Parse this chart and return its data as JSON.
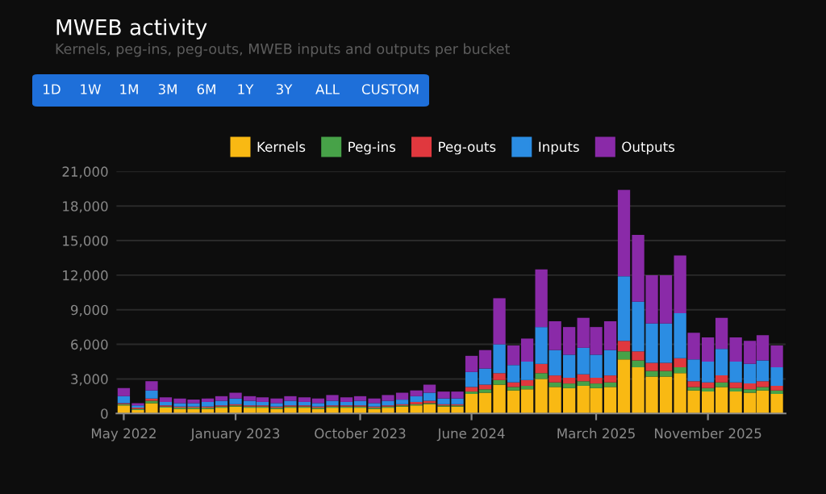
{
  "chart_data": {
    "type": "bar",
    "stacked": true,
    "title": "MWEB activity",
    "subtitle": "Kernels, peg-ins, peg-outs, MWEB inputs and outputs per bucket",
    "annotations": [
      "1D",
      "1W",
      "1M",
      "3M",
      "6M",
      "1Y",
      "3Y",
      "ALL",
      "CUSTOM"
    ],
    "x": [
      "2022-05",
      "2022-06",
      "2022-07",
      "2022-08",
      "2022-09",
      "2022-10",
      "2022-11",
      "2022-12",
      "2023-01",
      "2023-02",
      "2023-03",
      "2023-04",
      "2023-05",
      "2023-06",
      "2023-07",
      "2023-08",
      "2023-09",
      "2023-10",
      "2023-11",
      "2023-12",
      "2024-01",
      "2024-02",
      "2024-03",
      "2024-04",
      "2024-05",
      "2024-06",
      "2024-07",
      "2024-08",
      "2024-09",
      "2024-10",
      "2024-11",
      "2024-12",
      "2025-01",
      "2025-02",
      "2025-03",
      "2025-04",
      "2025-05",
      "2025-06",
      "2025-07",
      "2025-08",
      "2025-09",
      "2025-10",
      "2025-11",
      "2025-12",
      "2026-01",
      "2026-02",
      "2026-03",
      "2026-04"
    ],
    "series": [
      {
        "name": "Kernels",
        "color": "#f9b913",
        "values": [
          700,
          300,
          900,
          500,
          400,
          400,
          400,
          500,
          600,
          500,
          500,
          400,
          500,
          500,
          400,
          500,
          500,
          500,
          400,
          500,
          600,
          700,
          800,
          600,
          600,
          1700,
          1800,
          2500,
          2000,
          2100,
          3000,
          2300,
          2200,
          2400,
          2200,
          2300,
          4700,
          4000,
          3200,
          3200,
          3500,
          2000,
          1900,
          2300,
          1900,
          1800,
          2000,
          1700
        ]
      },
      {
        "name": "Peg-ins",
        "color": "#47a248",
        "values": [
          100,
          100,
          200,
          100,
          100,
          100,
          100,
          100,
          100,
          100,
          100,
          100,
          100,
          100,
          100,
          100,
          100,
          100,
          100,
          100,
          100,
          100,
          100,
          100,
          100,
          200,
          300,
          400,
          300,
          300,
          500,
          400,
          400,
          400,
          400,
          400,
          700,
          600,
          500,
          500,
          500,
          300,
          300,
          400,
          300,
          300,
          300,
          300
        ]
      },
      {
        "name": "Peg-outs",
        "color": "#e0383e",
        "values": [
          100,
          100,
          200,
          100,
          100,
          100,
          100,
          100,
          100,
          100,
          100,
          100,
          100,
          100,
          100,
          100,
          100,
          100,
          100,
          100,
          100,
          200,
          200,
          100,
          100,
          400,
          400,
          600,
          400,
          500,
          800,
          600,
          500,
          600,
          500,
          600,
          900,
          800,
          700,
          700,
          800,
          500,
          500,
          600,
          500,
          500,
          500,
          400
        ]
      },
      {
        "name": "Inputs",
        "color": "#2b8de3",
        "values": [
          600,
          200,
          700,
          300,
          300,
          300,
          400,
          400,
          500,
          400,
          300,
          300,
          400,
          300,
          300,
          400,
          300,
          400,
          300,
          400,
          400,
          500,
          700,
          500,
          500,
          1300,
          1400,
          2500,
          1500,
          1600,
          3200,
          2200,
          2000,
          2300,
          2000,
          2200,
          5600,
          4300,
          3400,
          3400,
          3900,
          1900,
          1800,
          2300,
          1800,
          1700,
          1800,
          1600
        ]
      },
      {
        "name": "Outputs",
        "color": "#8a2aa8",
        "values": [
          700,
          200,
          800,
          400,
          400,
          300,
          300,
          400,
          500,
          400,
          400,
          400,
          400,
          400,
          400,
          500,
          400,
          400,
          400,
          500,
          600,
          500,
          700,
          600,
          600,
          1400,
          1600,
          4000,
          1700,
          2000,
          5000,
          2500,
          2400,
          2600,
          2400,
          2500,
          7500,
          5800,
          4200,
          4200,
          5000,
          2300,
          2100,
          2700,
          2100,
          2000,
          2200,
          1900
        ]
      }
    ],
    "xlim": [
      "2022-04-15",
      "2026-04-20"
    ],
    "xticks": [
      {
        "value": "2022-05",
        "label": "May 2022"
      },
      {
        "value": "2023-01",
        "label": "January 2023"
      },
      {
        "value": "2023-10",
        "label": "October 2023"
      },
      {
        "value": "2024-06",
        "label": "June 2024"
      },
      {
        "value": "2025-03",
        "label": "March 2025"
      },
      {
        "value": "2025-11",
        "label": "November 2025"
      }
    ],
    "ylim": [
      0,
      21000
    ],
    "yticks": [
      {
        "value": 0,
        "label": "0"
      },
      {
        "value": 3000,
        "label": "3,000"
      },
      {
        "value": 6000,
        "label": "6,000"
      },
      {
        "value": 9000,
        "label": "9,000"
      },
      {
        "value": 12000,
        "label": "12,000"
      },
      {
        "value": 15000,
        "label": "15,000"
      },
      {
        "value": 18000,
        "label": "18,000"
      },
      {
        "value": 21000,
        "label": "21,000"
      }
    ],
    "grid": "y",
    "legend": "top"
  }
}
